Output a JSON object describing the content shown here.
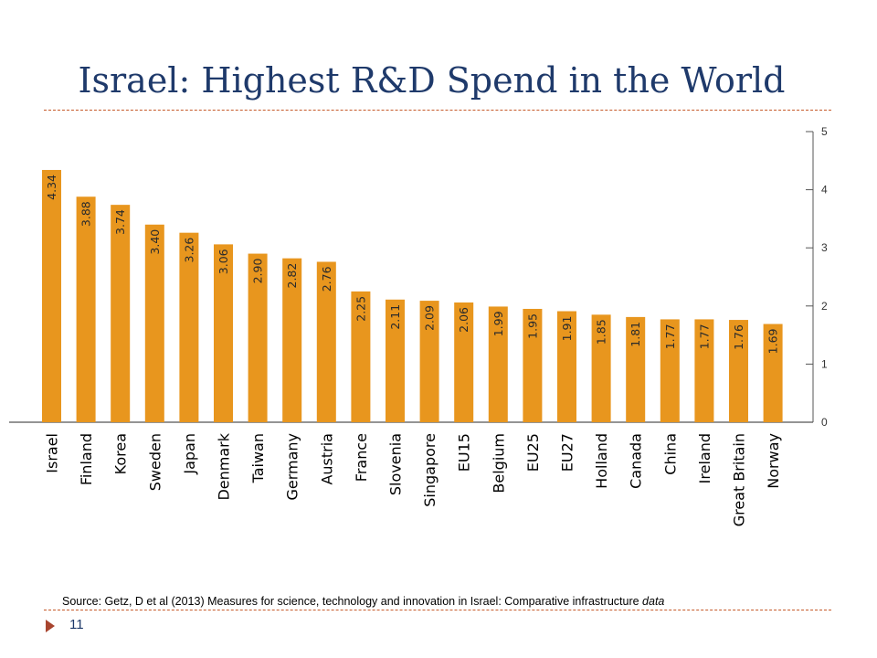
{
  "slide": {
    "title": "Israel: Highest R&D Spend in the World",
    "source_prefix": "Source: Getz, D et al (2013) Measures for science, technology and innovation in Israel: Comparative infrastructure ",
    "source_italic": "data",
    "page_number": "11"
  },
  "colors": {
    "bar": "#e8961e",
    "title": "#1f3a6b",
    "rule": "#c65a2a",
    "axis": "#555555"
  },
  "chart_data": {
    "type": "bar",
    "title": "",
    "xlabel": "",
    "ylabel": "",
    "ylim": [
      0,
      5
    ],
    "yticks": [
      0,
      1,
      2,
      3,
      4,
      5
    ],
    "y_axis_side": "right",
    "grid": false,
    "categories": [
      "Israel",
      "Finland",
      "Korea",
      "Sweden",
      "Japan",
      "Denmark",
      "Taiwan",
      "Germany",
      "Austria",
      "France",
      "Slovenia",
      "Singapore",
      "EU15",
      "Belgium",
      "EU25",
      "EU27",
      "Holland",
      "Canada",
      "China",
      "Ireland",
      "Great Britain",
      "Norway"
    ],
    "values": [
      4.34,
      3.88,
      3.74,
      3.4,
      3.26,
      3.06,
      2.9,
      2.82,
      2.76,
      2.25,
      2.11,
      2.09,
      2.06,
      1.99,
      1.95,
      1.91,
      1.85,
      1.81,
      1.77,
      1.77,
      1.76,
      1.69
    ],
    "value_labels": [
      "4.34",
      "3.88",
      "3.74",
      "3.40",
      "3.26",
      "3.06",
      "2.90",
      "2.82",
      "2.76",
      "2.25",
      "2.11",
      "2.09",
      "2.06",
      "1.99",
      "1.95",
      "1.91",
      "1.85",
      "1.81",
      "1.77",
      "1.77",
      "1.76",
      "1.69"
    ]
  }
}
